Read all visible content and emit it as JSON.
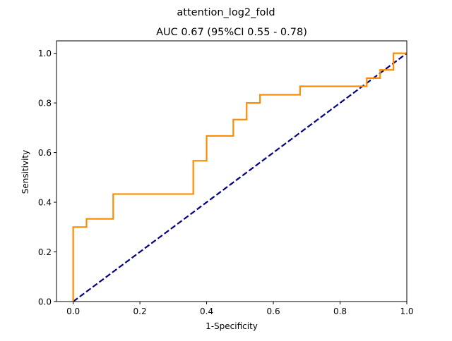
{
  "chart_data": {
    "type": "line",
    "suptitle": "attention_log2_fold",
    "title": "AUC 0.67 (95%CI 0.55 - 0.78)",
    "xlabel": "1-Specificity",
    "ylabel": "Sensitivity",
    "xlim": [
      -0.05,
      1.0
    ],
    "ylim": [
      0.0,
      1.05
    ],
    "x_ticks": [
      0.0,
      0.2,
      0.4,
      0.6,
      0.8,
      1.0
    ],
    "x_tick_labels": [
      "0.0",
      "0.2",
      "0.4",
      "0.6",
      "0.8",
      "1.0"
    ],
    "y_ticks": [
      0.0,
      0.2,
      0.4,
      0.6,
      0.8,
      1.0
    ],
    "y_tick_labels": [
      "0.0",
      "0.2",
      "0.4",
      "0.6",
      "0.8",
      "1.0"
    ],
    "grid": false,
    "series": [
      {
        "style": "solid",
        "color": "#ff8c00",
        "x": [
          0.0,
          0.0,
          0.04,
          0.04,
          0.12,
          0.12,
          0.36,
          0.36,
          0.4,
          0.4,
          0.48,
          0.48,
          0.52,
          0.52,
          0.56,
          0.56,
          0.68,
          0.68,
          0.88,
          0.88,
          0.92,
          0.92,
          0.96,
          0.96,
          1.0
        ],
        "y": [
          0.0,
          0.3,
          0.3,
          0.333,
          0.333,
          0.433,
          0.433,
          0.567,
          0.567,
          0.667,
          0.667,
          0.733,
          0.733,
          0.8,
          0.8,
          0.833,
          0.833,
          0.867,
          0.867,
          0.9,
          0.9,
          0.933,
          0.933,
          1.0,
          1.0
        ]
      },
      {
        "style": "dashed",
        "color": "#000080",
        "x": [
          0.0,
          1.0
        ],
        "y": [
          0.0,
          1.0
        ]
      }
    ]
  }
}
